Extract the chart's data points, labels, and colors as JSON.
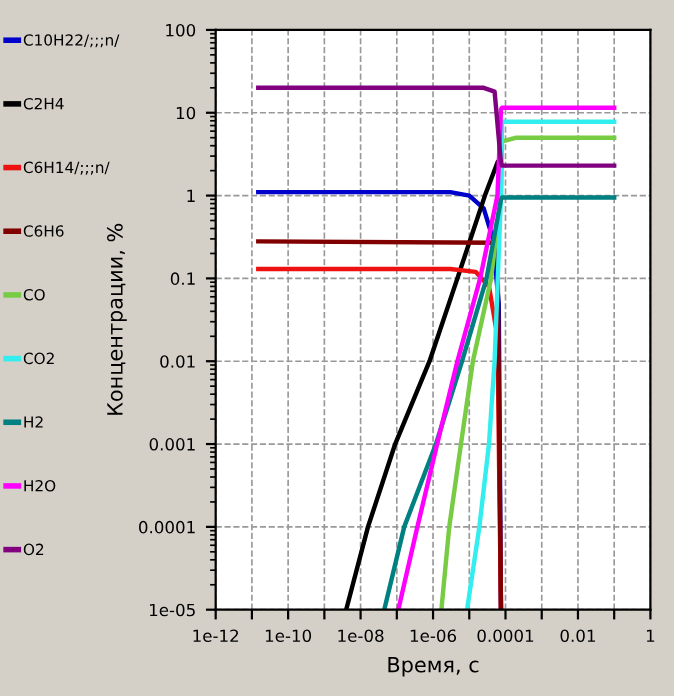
{
  "chart_data": {
    "type": "line",
    "xlabel": "Время, с",
    "ylabel": "Концентрации, %",
    "log": "xy",
    "grid": true,
    "legend": "left",
    "xlim": [
      1e-12,
      1
    ],
    "ylim": [
      1e-05,
      100
    ],
    "xticks": [
      {
        "value": 1e-12,
        "label": "1e-12"
      },
      {
        "value": 1e-11,
        "label": null
      },
      {
        "value": 1e-10,
        "label": "1e-10"
      },
      {
        "value": 1e-09,
        "label": null
      },
      {
        "value": 1e-08,
        "label": "1e-08"
      },
      {
        "value": 1e-07,
        "label": null
      },
      {
        "value": 1e-06,
        "label": "1e-06"
      },
      {
        "value": 1e-05,
        "label": null
      },
      {
        "value": 0.0001,
        "label": "0.0001"
      },
      {
        "value": 0.001,
        "label": null
      },
      {
        "value": 0.01,
        "label": "0.01"
      },
      {
        "value": 0.1,
        "label": null
      },
      {
        "value": 1,
        "label": "1"
      }
    ],
    "yticks": [
      {
        "value": 1e-05,
        "label": "1e-05"
      },
      0.0001,
      0.001,
      0.01,
      0.1,
      1,
      10,
      100
    ],
    "series": [
      {
        "name": "C10H22/;;;n/",
        "color": "#0000cc",
        "x": [
          1.5e-11,
          3e-06,
          1e-05,
          2.5e-05,
          4.5e-05,
          6.5e-05,
          7.5e-05
        ],
        "values": [
          1.1,
          1.1,
          1.0,
          0.7,
          0.3,
          0.05,
          1e-05
        ]
      },
      {
        "name": "C2H4",
        "color": "#000000",
        "x": [
          4e-09,
          1.6e-08,
          9e-08,
          8e-07,
          4.7e-06,
          2.7e-05,
          6e-05
        ],
        "values": [
          1e-05,
          0.0001,
          0.001,
          0.01,
          0.1,
          1,
          2.5
        ]
      },
      {
        "name": "C6H14/;;;n/",
        "color": "#ee1111",
        "x": [
          1.5e-11,
          3e-06,
          1.5e-05,
          3.5e-05,
          6e-05,
          7.5e-05
        ],
        "values": [
          0.13,
          0.13,
          0.12,
          0.08,
          0.02,
          1e-05
        ]
      },
      {
        "name": "C6H6",
        "color": "#800000",
        "x": [
          1.5e-11,
          6e-05,
          7.5e-05
        ],
        "values": [
          0.28,
          0.27,
          1e-05
        ]
      },
      {
        "name": "CO",
        "color": "#77cc44",
        "x": [
          1.7e-06,
          2.8e-06,
          5.9e-06,
          1.26e-05,
          4e-05,
          7.5e-05,
          8e-05,
          0.0002,
          0.1
        ],
        "values": [
          1e-05,
          0.0001,
          0.001,
          0.01,
          0.1,
          1,
          4.5,
          5,
          5
        ]
      },
      {
        "name": "CO2",
        "color": "#33eeee",
        "x": [
          8.7e-06,
          1.9e-05,
          3.5e-05,
          5e-05,
          7.5e-05,
          8e-05,
          0.1
        ],
        "values": [
          1e-05,
          0.0001,
          0.001,
          0.01,
          1,
          7.8,
          7.8
        ]
      },
      {
        "name": "H2",
        "color": "#008080",
        "x": [
          4.5e-08,
          1.6e-07,
          1.2e-06,
          6.3e-06,
          3e-05,
          7.5e-05,
          8e-05,
          0.1
        ],
        "values": [
          1e-05,
          0.0001,
          0.001,
          0.01,
          0.1,
          0.9,
          0.95,
          0.95
        ]
      },
      {
        "name": "H2O",
        "color": "#ff00ff",
        "x": [
          1.1e-07,
          3.7e-07,
          1.3e-06,
          4.7e-06,
          2e-05,
          6e-05,
          7.5e-05,
          8e-05,
          0.1
        ],
        "values": [
          1e-05,
          0.0001,
          0.001,
          0.01,
          0.1,
          1,
          11,
          11.5,
          11.5
        ]
      },
      {
        "name": "O2",
        "color": "#800080",
        "x": [
          1.5e-11,
          2.5e-05,
          5e-05,
          7.5e-05,
          8e-05,
          0.1
        ],
        "values": [
          20,
          20,
          18,
          2.5,
          2.3,
          2.3
        ]
      }
    ]
  }
}
